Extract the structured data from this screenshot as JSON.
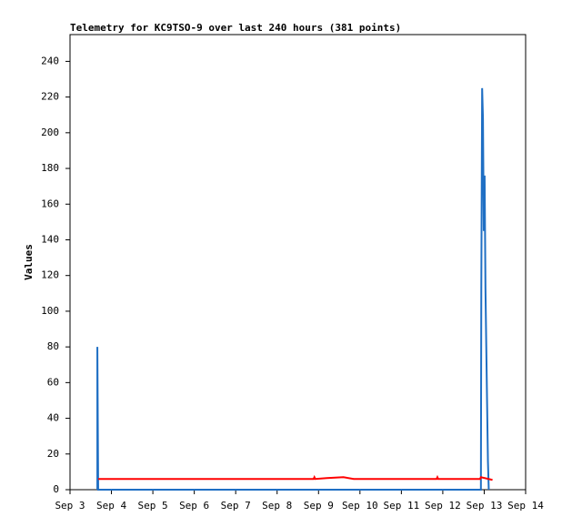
{
  "chart_data": {
    "type": "line",
    "title": "Telemetry for KC9TSO-9 over last 240 hours (381 points)",
    "ylabel": "Values",
    "xlim": [
      3,
      14
    ],
    "ylim": [
      0,
      255
    ],
    "xticks": [
      {
        "value": 3,
        "label": "Sep 3"
      },
      {
        "value": 4,
        "label": "Sep 4"
      },
      {
        "value": 5,
        "label": "Sep 5"
      },
      {
        "value": 6,
        "label": "Sep 6"
      },
      {
        "value": 7,
        "label": "Sep 7"
      },
      {
        "value": 8,
        "label": "Sep 8"
      },
      {
        "value": 9,
        "label": "Sep 9"
      },
      {
        "value": 10,
        "label": "Sep 10"
      },
      {
        "value": 11,
        "label": "Sep 11"
      },
      {
        "value": 12,
        "label": "Sep 12"
      },
      {
        "value": 13,
        "label": "Sep 13"
      },
      {
        "value": 14,
        "label": "Sep 14"
      }
    ],
    "yticks": [
      0,
      20,
      40,
      60,
      80,
      100,
      120,
      140,
      160,
      180,
      200,
      220,
      240
    ],
    "grid": false,
    "series": [
      {
        "color": "#1f6fc4",
        "x": [
          3.66,
          3.66,
          3.68,
          12.92,
          12.93,
          12.95,
          12.97,
          12.99,
          13.01,
          13.03,
          13.05,
          13.07,
          13.09,
          13.11
        ],
        "values": [
          0,
          80,
          0,
          0,
          112,
          225,
          208,
          145,
          176,
          113,
          80,
          48,
          16,
          0
        ]
      },
      {
        "color": "#ff0000",
        "x": [
          3.68,
          8.88,
          8.9,
          8.92,
          9.2,
          9.6,
          9.85,
          11.85,
          11.87,
          11.89,
          12.9,
          12.92,
          13.2
        ],
        "values": [
          6,
          6,
          7,
          6,
          6.5,
          7,
          6,
          6,
          7,
          6,
          6,
          7,
          5.5
        ]
      }
    ]
  }
}
